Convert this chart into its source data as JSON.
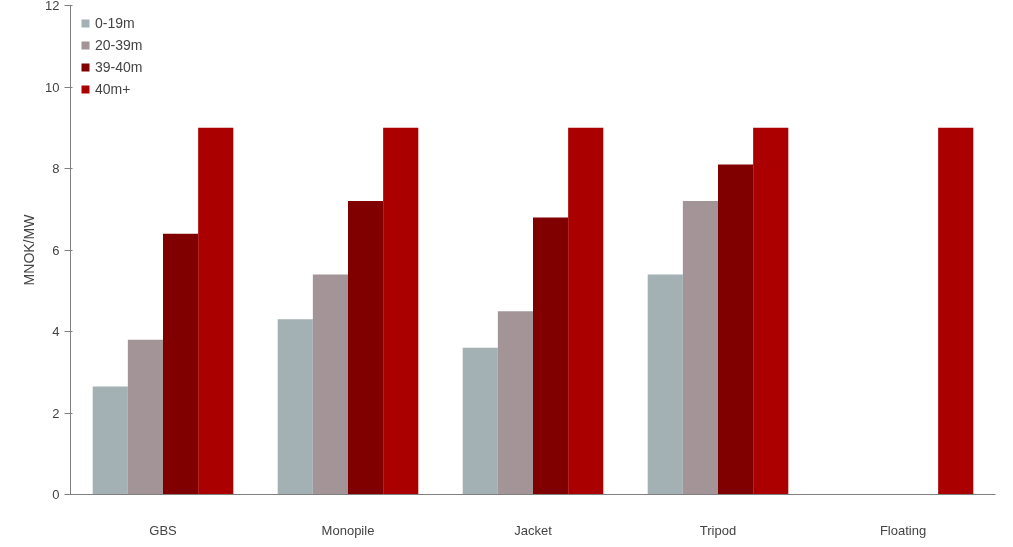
{
  "chart_data": {
    "type": "bar",
    "ylabel": "MNOK/MW",
    "categories": [
      "GBS",
      "Monopile",
      "Jacket",
      "Tripod",
      "Floating"
    ],
    "series": [
      {
        "name": "0-19m",
        "color": "#a3b1b4",
        "values": [
          2.65,
          4.3,
          3.6,
          5.4,
          null
        ]
      },
      {
        "name": "20-39m",
        "color": "#a39597",
        "values": [
          3.8,
          5.4,
          4.5,
          7.2,
          null
        ]
      },
      {
        "name": "39-40m",
        "color": "#800000",
        "values": [
          6.4,
          7.2,
          6.8,
          8.1,
          null
        ]
      },
      {
        "name": "40m+",
        "color": "#aa0000",
        "values": [
          9,
          9,
          9,
          9,
          9
        ]
      }
    ],
    "ylim": [
      0,
      12
    ],
    "yticks": [
      0,
      2,
      4,
      6,
      8,
      10,
      12
    ],
    "grid": false,
    "legend": "top left"
  }
}
